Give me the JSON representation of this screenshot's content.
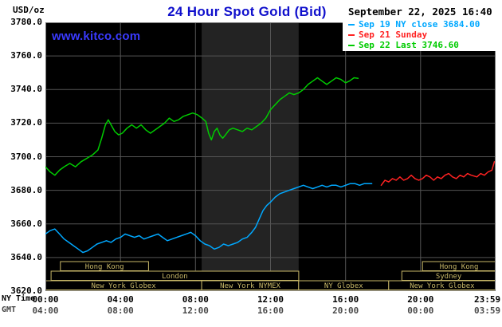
{
  "chart_data": {
    "type": "line",
    "title": "24 Hour Spot Gold (Bid)",
    "datetime": "September 22, 2025 16:40",
    "watermark": "www.kitco.com",
    "y_unit": "USD/oz",
    "xlabel": "",
    "ylabel": "USD/oz",
    "ylim": [
      3620,
      3780
    ],
    "xlim_hours": [
      0,
      24
    ],
    "grid": true,
    "legend_position": "top-right",
    "y_ticks": [
      "3780.0",
      "3760.0",
      "3740.0",
      "3720.0",
      "3700.0",
      "3680.0",
      "3660.0",
      "3640.0",
      "3620.0"
    ],
    "grid_hours": [
      4,
      8,
      12,
      16,
      20
    ],
    "x_axis": {
      "ny_label": "NY Time",
      "gmt_label": "GMT",
      "ny_ticks": [
        {
          "hour": 0,
          "label": "00:00"
        },
        {
          "hour": 4,
          "label": "04:00"
        },
        {
          "hour": 8,
          "label": "08:00"
        },
        {
          "hour": 12,
          "label": "12:00"
        },
        {
          "hour": 16,
          "label": "16:00"
        },
        {
          "hour": 20,
          "label": "20:00"
        },
        {
          "hour": 23.98,
          "label": "23:59",
          "align": "right"
        }
      ],
      "gmt_ticks": [
        {
          "hour": 0,
          "label": "04:00"
        },
        {
          "hour": 4,
          "label": "08:00"
        },
        {
          "hour": 8,
          "label": "12:00"
        },
        {
          "hour": 12,
          "label": "16:00"
        },
        {
          "hour": 16,
          "label": "20:00"
        },
        {
          "hour": 20,
          "label": "00:00"
        },
        {
          "hour": 23.98,
          "label": "03:59",
          "align": "right"
        }
      ]
    },
    "colors": {
      "title": "#1010cc",
      "watermark": "#3a3aff",
      "grid": "#555555",
      "border": "#7a7a7a",
      "session": "#c8b868",
      "plot_bg": "#000000",
      "page_bg": "#ffffff"
    },
    "nymex_band": {
      "start_hour": 8.33,
      "end_hour": 13.5,
      "color": "#232323"
    },
    "legend": [
      {
        "label": "Sep 19 NY close 3684.00",
        "color": "#00a8ff"
      },
      {
        "label": "Sep 21 Sunday",
        "color": "#ff2222"
      },
      {
        "label": "Sep 22 Last 3746.60",
        "color": "#00cc00"
      }
    ],
    "series": [
      {
        "id": "sep19",
        "name": "Sep 19",
        "color": "#00a8ff",
        "points": [
          [
            0,
            3654
          ],
          [
            0.25,
            3656
          ],
          [
            0.5,
            3657
          ],
          [
            0.75,
            3654
          ],
          [
            1,
            3651
          ],
          [
            1.25,
            3649
          ],
          [
            1.5,
            3647
          ],
          [
            1.75,
            3645
          ],
          [
            2,
            3643
          ],
          [
            2.25,
            3644
          ],
          [
            2.5,
            3646
          ],
          [
            2.75,
            3648
          ],
          [
            3,
            3649
          ],
          [
            3.25,
            3650
          ],
          [
            3.5,
            3649
          ],
          [
            3.75,
            3651
          ],
          [
            4,
            3652
          ],
          [
            4.25,
            3654
          ],
          [
            4.5,
            3653
          ],
          [
            4.75,
            3652
          ],
          [
            5,
            3653
          ],
          [
            5.25,
            3651
          ],
          [
            5.5,
            3652
          ],
          [
            5.75,
            3653
          ],
          [
            6,
            3654
          ],
          [
            6.25,
            3652
          ],
          [
            6.5,
            3650
          ],
          [
            6.75,
            3651
          ],
          [
            7,
            3652
          ],
          [
            7.25,
            3653
          ],
          [
            7.5,
            3654
          ],
          [
            7.75,
            3655
          ],
          [
            8,
            3653
          ],
          [
            8.25,
            3650
          ],
          [
            8.5,
            3648
          ],
          [
            8.75,
            3647
          ],
          [
            9,
            3645
          ],
          [
            9.25,
            3646
          ],
          [
            9.5,
            3648
          ],
          [
            9.75,
            3647
          ],
          [
            10,
            3648
          ],
          [
            10.25,
            3649
          ],
          [
            10.5,
            3651
          ],
          [
            10.75,
            3652
          ],
          [
            11,
            3655
          ],
          [
            11.2,
            3658
          ],
          [
            11.4,
            3663
          ],
          [
            11.6,
            3668
          ],
          [
            11.8,
            3671
          ],
          [
            12,
            3673
          ],
          [
            12.25,
            3676
          ],
          [
            12.5,
            3678
          ],
          [
            12.75,
            3679
          ],
          [
            13,
            3680
          ],
          [
            13.25,
            3681
          ],
          [
            13.5,
            3682
          ],
          [
            13.75,
            3683
          ],
          [
            14,
            3682
          ],
          [
            14.25,
            3681
          ],
          [
            14.5,
            3682
          ],
          [
            14.75,
            3683
          ],
          [
            15,
            3682
          ],
          [
            15.25,
            3683
          ],
          [
            15.5,
            3683
          ],
          [
            15.75,
            3682
          ],
          [
            16,
            3683
          ],
          [
            16.25,
            3684
          ],
          [
            16.5,
            3684
          ],
          [
            16.75,
            3683
          ],
          [
            17,
            3684
          ],
          [
            17.4,
            3684
          ]
        ]
      },
      {
        "id": "sep21",
        "name": "Sep 21 Sunday",
        "color": "#ff2222",
        "points": [
          [
            17.9,
            3683
          ],
          [
            18.1,
            3686
          ],
          [
            18.3,
            3685
          ],
          [
            18.5,
            3687
          ],
          [
            18.7,
            3686
          ],
          [
            18.9,
            3688
          ],
          [
            19.1,
            3686
          ],
          [
            19.3,
            3687
          ],
          [
            19.5,
            3689
          ],
          [
            19.7,
            3687
          ],
          [
            19.9,
            3686
          ],
          [
            20.1,
            3687
          ],
          [
            20.3,
            3689
          ],
          [
            20.5,
            3688
          ],
          [
            20.7,
            3686
          ],
          [
            20.9,
            3688
          ],
          [
            21.1,
            3687
          ],
          [
            21.3,
            3689
          ],
          [
            21.5,
            3690
          ],
          [
            21.7,
            3688
          ],
          [
            21.9,
            3687
          ],
          [
            22.1,
            3689
          ],
          [
            22.3,
            3688
          ],
          [
            22.5,
            3690
          ],
          [
            22.7,
            3689
          ],
          [
            23,
            3688
          ],
          [
            23.2,
            3690
          ],
          [
            23.4,
            3689
          ],
          [
            23.6,
            3691
          ],
          [
            23.8,
            3692
          ],
          [
            23.93,
            3697
          ]
        ]
      },
      {
        "id": "sep22",
        "name": "Sep 22",
        "color": "#00cc00",
        "points": [
          [
            0,
            3694
          ],
          [
            0.25,
            3691
          ],
          [
            0.5,
            3689
          ],
          [
            0.75,
            3692
          ],
          [
            1,
            3694
          ],
          [
            1.3,
            3696
          ],
          [
            1.6,
            3694
          ],
          [
            1.9,
            3697
          ],
          [
            2.2,
            3699
          ],
          [
            2.5,
            3701
          ],
          [
            2.8,
            3704
          ],
          [
            3,
            3711
          ],
          [
            3.2,
            3719
          ],
          [
            3.35,
            3722
          ],
          [
            3.5,
            3719
          ],
          [
            3.7,
            3715
          ],
          [
            3.9,
            3713
          ],
          [
            4.1,
            3714
          ],
          [
            4.35,
            3717
          ],
          [
            4.6,
            3719
          ],
          [
            4.85,
            3717
          ],
          [
            5.1,
            3719
          ],
          [
            5.35,
            3716
          ],
          [
            5.6,
            3714
          ],
          [
            5.85,
            3716
          ],
          [
            6.1,
            3718
          ],
          [
            6.35,
            3720
          ],
          [
            6.6,
            3723
          ],
          [
            6.85,
            3721
          ],
          [
            7.1,
            3722
          ],
          [
            7.35,
            3724
          ],
          [
            7.6,
            3725
          ],
          [
            7.85,
            3726
          ],
          [
            8.1,
            3725
          ],
          [
            8.35,
            3723
          ],
          [
            8.55,
            3721
          ],
          [
            8.7,
            3714
          ],
          [
            8.85,
            3710
          ],
          [
            9,
            3715
          ],
          [
            9.15,
            3717
          ],
          [
            9.3,
            3713
          ],
          [
            9.45,
            3711
          ],
          [
            9.6,
            3713
          ],
          [
            9.8,
            3716
          ],
          [
            10,
            3717
          ],
          [
            10.25,
            3716
          ],
          [
            10.5,
            3715
          ],
          [
            10.75,
            3717
          ],
          [
            11,
            3716
          ],
          [
            11.25,
            3718
          ],
          [
            11.5,
            3720
          ],
          [
            11.75,
            3723
          ],
          [
            12,
            3728
          ],
          [
            12.25,
            3731
          ],
          [
            12.5,
            3734
          ],
          [
            12.75,
            3736
          ],
          [
            13,
            3738
          ],
          [
            13.25,
            3737
          ],
          [
            13.5,
            3738
          ],
          [
            13.75,
            3740
          ],
          [
            14,
            3743
          ],
          [
            14.25,
            3745
          ],
          [
            14.5,
            3747
          ],
          [
            14.75,
            3745
          ],
          [
            15,
            3743
          ],
          [
            15.25,
            3745
          ],
          [
            15.5,
            3747
          ],
          [
            15.75,
            3746
          ],
          [
            16,
            3744
          ],
          [
            16.2,
            3745
          ],
          [
            16.45,
            3747
          ],
          [
            16.67,
            3746.6
          ]
        ]
      }
    ],
    "sessions": [
      {
        "row": 0,
        "label": "Hong Kong",
        "start": 0.8,
        "end": 5.5
      },
      {
        "row": 0,
        "label": "Hong Kong",
        "start": 20.1,
        "end": 24
      },
      {
        "row": 1,
        "label": "London",
        "start": 0.3,
        "end": 13.5
      },
      {
        "row": 1,
        "label": "Sydney",
        "start": 19.0,
        "end": 24
      },
      {
        "row": 2,
        "label": "New York Globex",
        "start": 0,
        "end": 8.33
      },
      {
        "row": 2,
        "label": "New York NYMEX",
        "start": 8.33,
        "end": 13.5
      },
      {
        "row": 2,
        "label": "NY Globex",
        "start": 13.5,
        "end": 18.3
      },
      {
        "row": 2,
        "label": "New York Globex",
        "start": 18.3,
        "end": 24
      }
    ]
  }
}
